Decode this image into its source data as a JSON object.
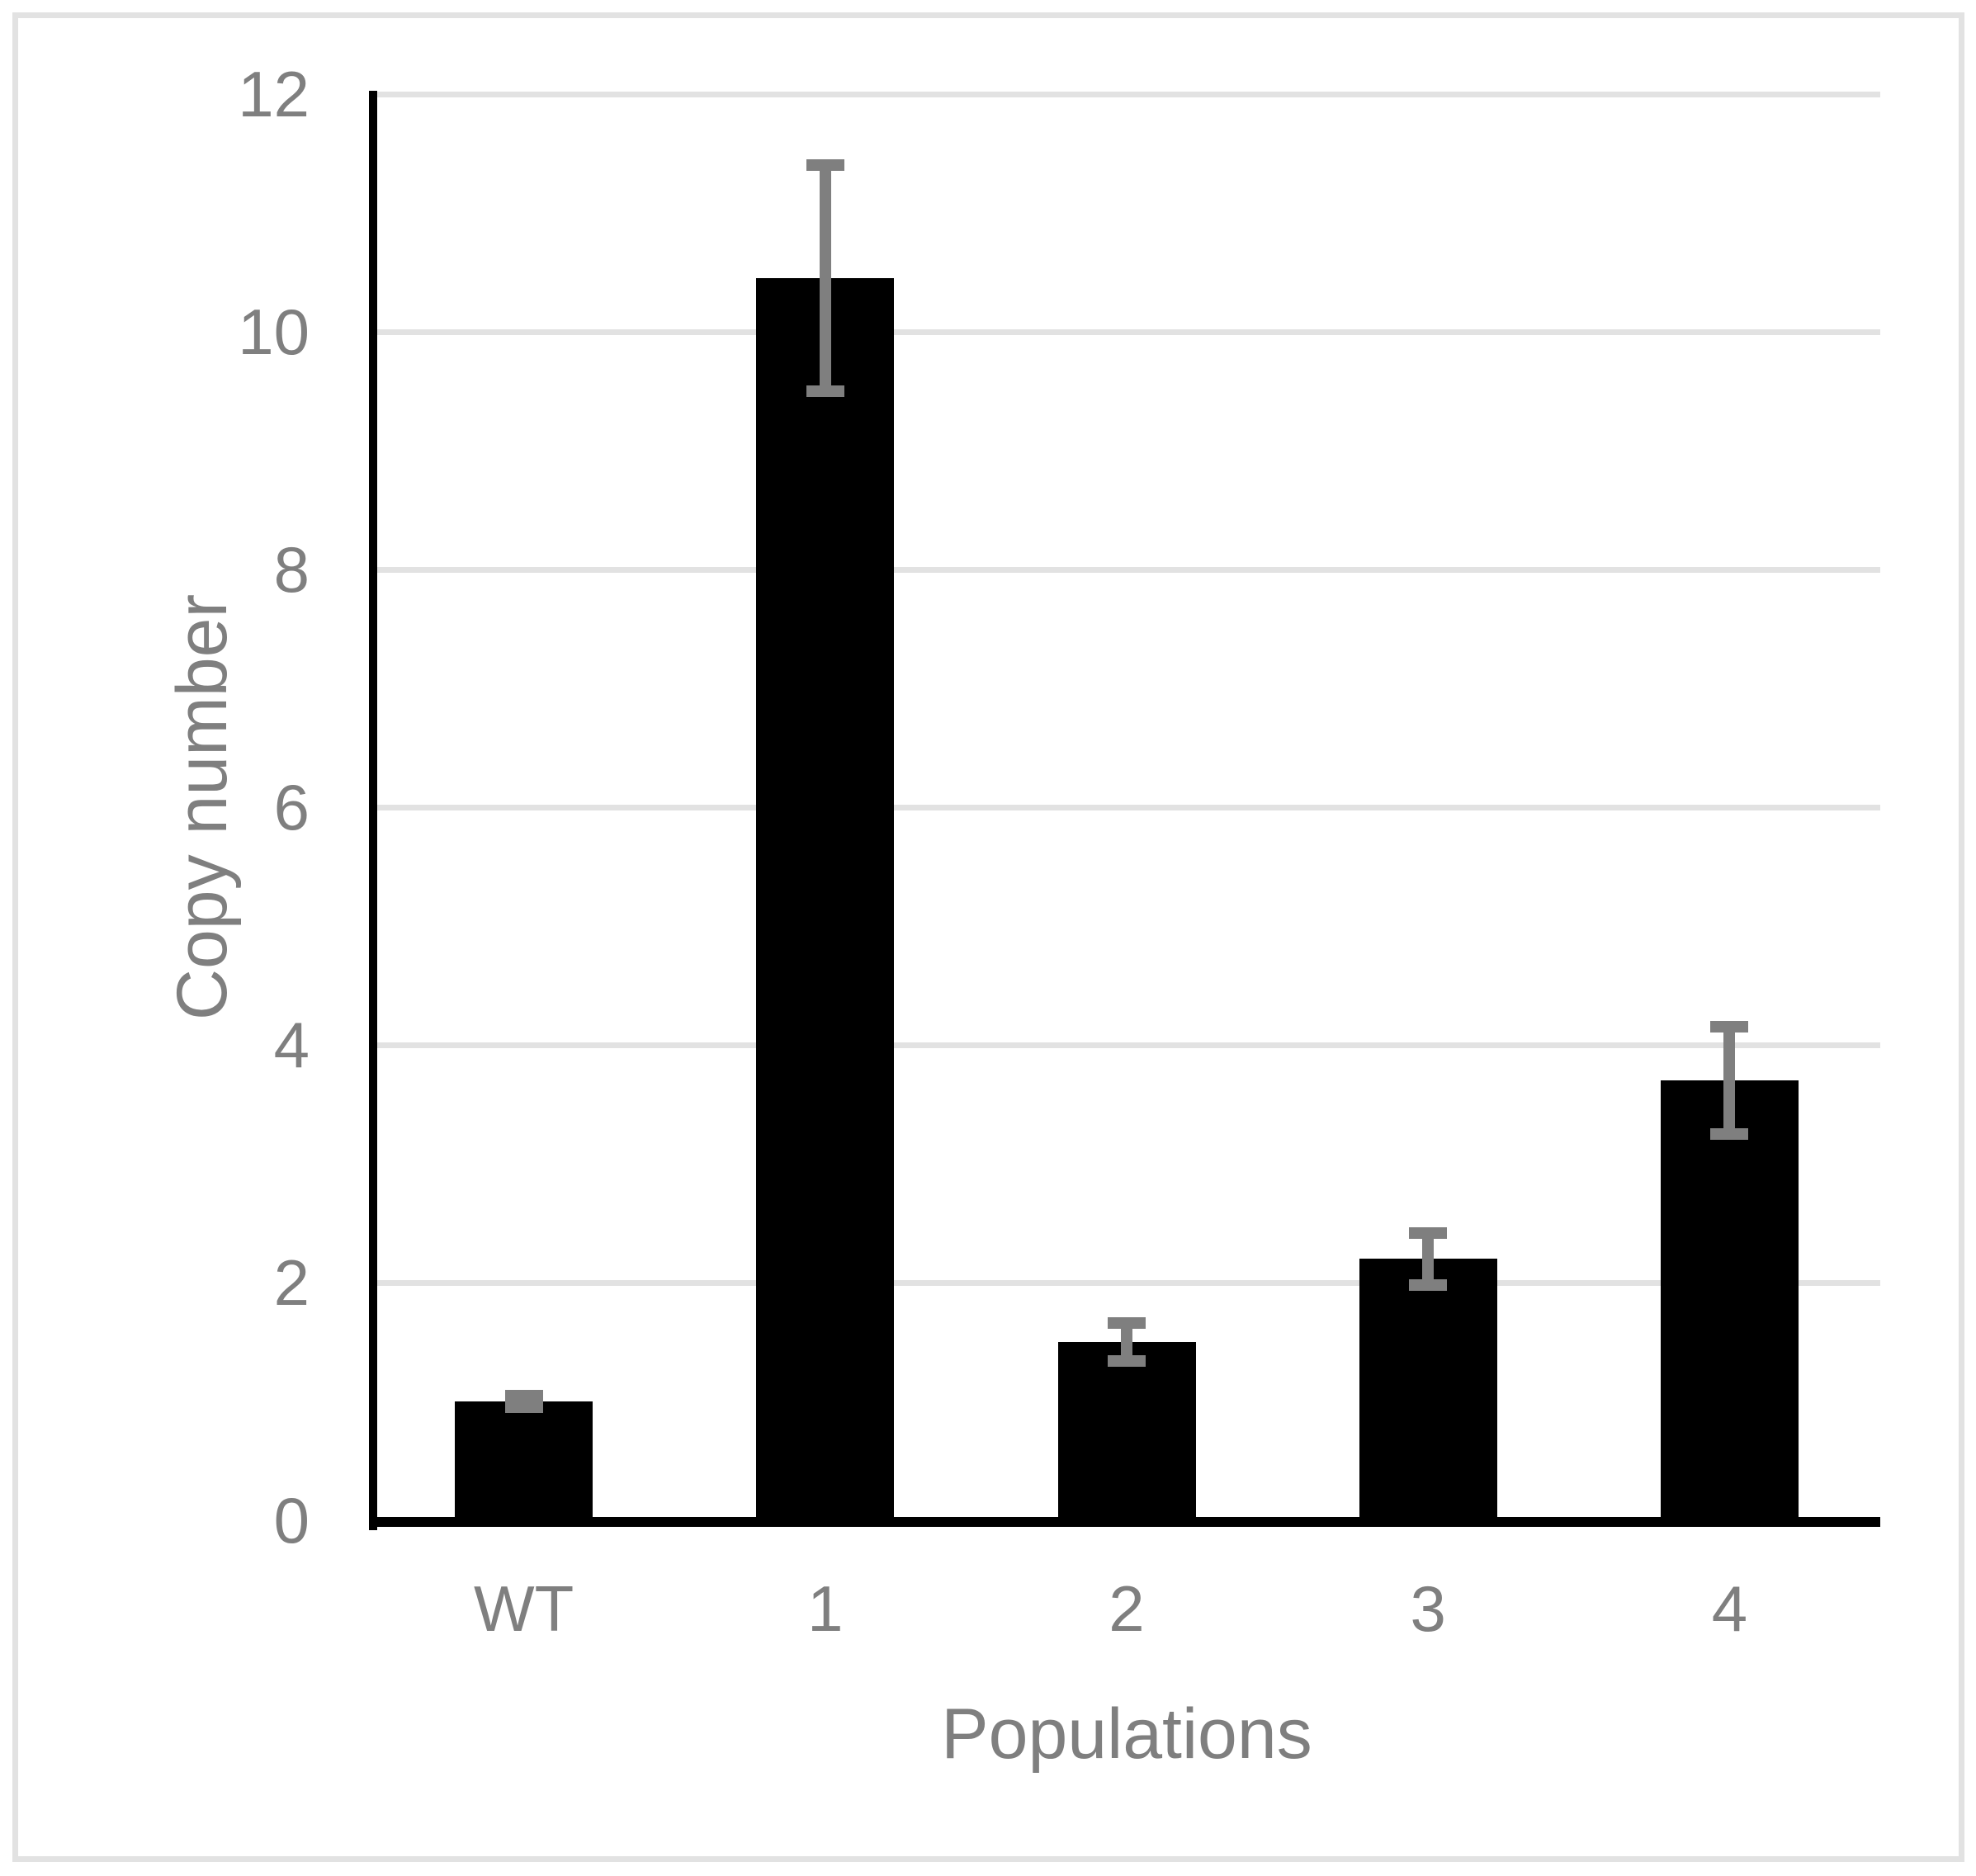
{
  "chart_data": {
    "type": "bar",
    "categories": [
      "WT",
      "1",
      "2",
      "3",
      "4"
    ],
    "values": [
      1.0,
      10.45,
      1.5,
      2.2,
      3.7
    ],
    "error_bars": [
      0.05,
      0.95,
      0.16,
      0.22,
      0.45
    ],
    "title": "",
    "xlabel": "Populations",
    "ylabel": "Copy number",
    "ylim": [
      0,
      12
    ],
    "yticks": [
      0,
      2,
      4,
      6,
      8,
      10,
      12
    ],
    "grid": "horizontal",
    "legend": "none",
    "colors": {
      "bar": "#000000",
      "error_bar": "#7f7f7f",
      "gridline": "#e2e2e2",
      "axis_line": "#000000",
      "text": "#7f7f7f",
      "frame_border": "#e2e2e2",
      "background": "#ffffff"
    }
  }
}
